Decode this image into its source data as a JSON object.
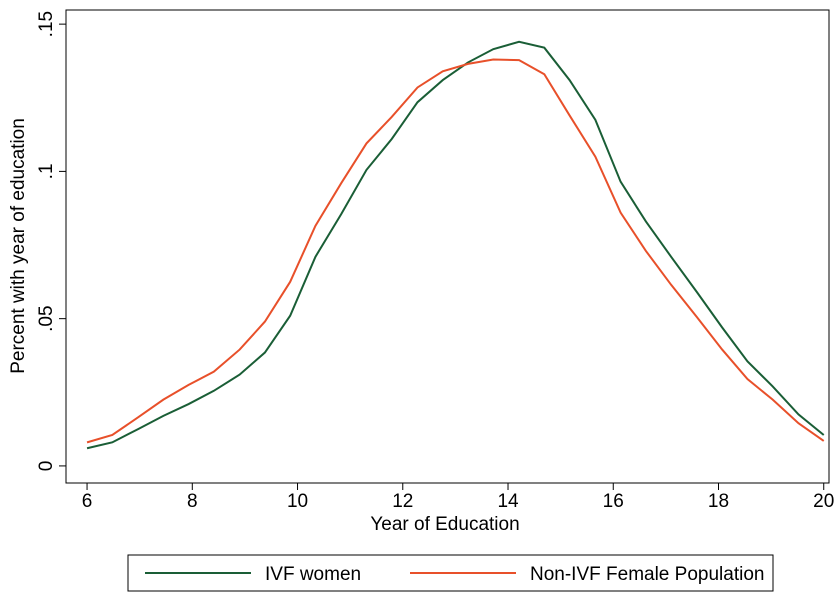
{
  "chart_data": {
    "type": "line",
    "x_label": "Year of Education",
    "y_label": "Percent with year of education",
    "x": [
      6,
      6.48,
      6.97,
      7.45,
      7.93,
      8.41,
      8.9,
      9.38,
      9.86,
      10.34,
      10.83,
      11.31,
      11.79,
      12.28,
      12.76,
      13.24,
      13.72,
      14.21,
      14.69,
      15.17,
      15.66,
      16.14,
      16.62,
      17.1,
      17.59,
      18.07,
      18.55,
      19.03,
      19.52,
      20
    ],
    "series": [
      {
        "name": "IVF women",
        "color": "#1a5e36",
        "values": [
          0.006,
          0.008,
          0.0125,
          0.017,
          0.021,
          0.0255,
          0.031,
          0.0385,
          0.051,
          0.071,
          0.0855,
          0.1005,
          0.111,
          0.1235,
          0.131,
          0.137,
          0.1415,
          0.144,
          0.142,
          0.131,
          0.1175,
          0.0965,
          0.083,
          0.071,
          0.059,
          0.047,
          0.0355,
          0.027,
          0.0175,
          0.0105
        ]
      },
      {
        "name": "Non-IVF Female Population",
        "color": "#e8502a",
        "values": [
          0.008,
          0.0105,
          0.0165,
          0.0225,
          0.0275,
          0.032,
          0.0395,
          0.049,
          0.0625,
          0.0815,
          0.096,
          0.1095,
          0.1185,
          0.1285,
          0.134,
          0.1365,
          0.138,
          0.1378,
          0.133,
          0.119,
          0.105,
          0.086,
          0.073,
          0.0615,
          0.0505,
          0.0395,
          0.0295,
          0.0225,
          0.0145,
          0.0085
        ]
      }
    ],
    "xlim": [
      5.6,
      20.1
    ],
    "xticks": [
      6,
      8,
      10,
      12,
      14,
      16,
      18,
      20
    ],
    "ylim": [
      -0.0058,
      0.1548
    ],
    "yticks": [
      0,
      {
        "value": 0.05,
        "label": ".05"
      },
      {
        "value": 0.1,
        "label": ".1"
      },
      {
        "value": 0.15,
        "label": ".15"
      }
    ],
    "legend": "bottom"
  }
}
